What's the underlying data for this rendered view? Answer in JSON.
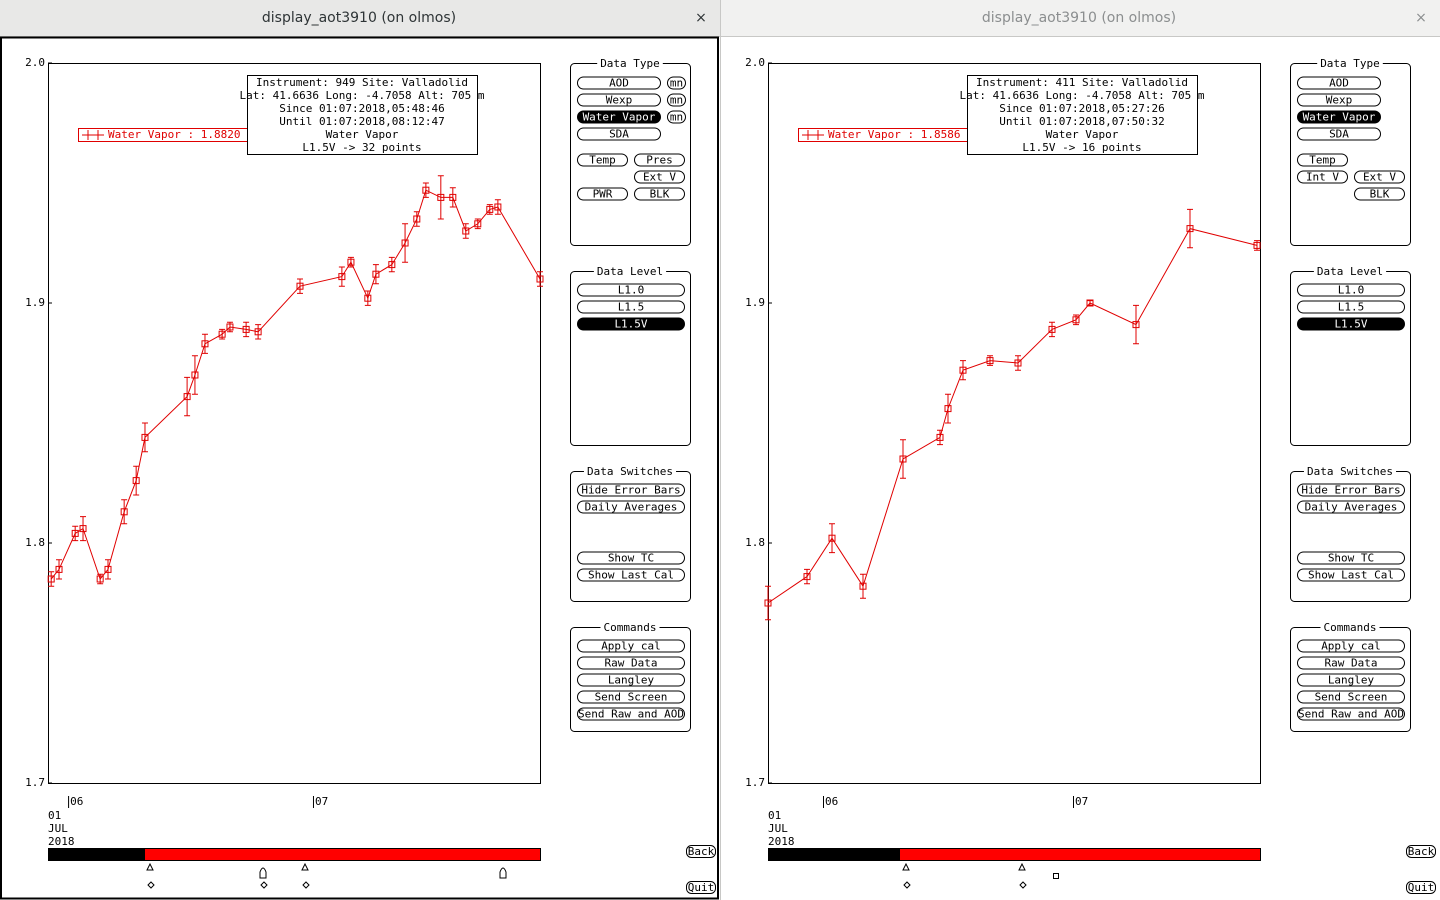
{
  "chart_data": [
    {
      "type": "line",
      "legend": "Water Vapor : 1.8820 ±",
      "info": [
        "Instrument: 949 Site: Valladolid",
        "Lat: 41.6636 Long: -4.7058 Alt: 705 m",
        "Since 01:07:2018,05:48:46",
        "Until 01:07:2018,08:12:47",
        "Water Vapor",
        "L1.5V -> 32 points"
      ],
      "date_labels": [
        "01",
        "JUL",
        "2018"
      ],
      "x": [
        5.931,
        5.963,
        6.029,
        6.061,
        6.131,
        6.163,
        6.229,
        6.278,
        6.314,
        6.486,
        6.518,
        6.559,
        6.629,
        6.661,
        6.727,
        6.776,
        6.947,
        7.118,
        7.155,
        7.224,
        7.257,
        7.322,
        7.376,
        7.424,
        7.461,
        7.522,
        7.571,
        7.624,
        7.673,
        7.722,
        7.755,
        7.927
      ],
      "values": [
        1.785,
        1.789,
        1.804,
        1.806,
        1.785,
        1.789,
        1.813,
        1.826,
        1.844,
        1.861,
        1.87,
        1.883,
        1.887,
        1.89,
        1.889,
        1.888,
        1.907,
        1.911,
        1.917,
        1.902,
        1.912,
        1.916,
        1.925,
        1.935,
        1.947,
        1.944,
        1.944,
        1.93,
        1.933,
        1.939,
        1.94,
        1.91
      ],
      "errors": [
        0.003,
        0.004,
        0.003,
        0.005,
        0.002,
        0.004,
        0.005,
        0.006,
        0.006,
        0.008,
        0.008,
        0.004,
        0.002,
        0.002,
        0.003,
        0.003,
        0.003,
        0.004,
        0.002,
        0.003,
        0.004,
        0.003,
        0.008,
        0.003,
        0.003,
        0.009,
        0.004,
        0.003,
        0.002,
        0.002,
        0.003,
        0.003
      ],
      "color": "#e00000",
      "xlim": [
        5.918,
        7.927
      ],
      "xticks": [
        {
          "value": 6,
          "label": "06"
        },
        {
          "value": 7,
          "label": "07"
        }
      ],
      "ylim": [
        1.7,
        2.0
      ],
      "yticks": [
        {
          "value": 2,
          "label": "2.0"
        },
        1.9,
        1.8,
        1.7
      ]
    },
    {
      "type": "line",
      "legend": "Water Vapor : 1.8586 ±",
      "info": [
        "Instrument: 411 Site: Valladolid",
        "Lat: 41.6636 Long: -4.7058 Alt: 705 m",
        "Since 01:07:2018,05:27:26",
        "Until 01:07:2018,07:50:32",
        "Water Vapor",
        "L1.5V -> 16 points"
      ],
      "date_labels": [
        "01",
        "JUL",
        "2018"
      ],
      "x": [
        5.78,
        5.936,
        6.036,
        6.16,
        6.32,
        6.468,
        6.5,
        6.56,
        6.668,
        6.78,
        6.916,
        7.012,
        7.068,
        7.252,
        7.468,
        7.736
      ],
      "values": [
        1.775,
        1.786,
        1.802,
        1.782,
        1.835,
        1.844,
        1.856,
        1.872,
        1.876,
        1.875,
        1.889,
        1.893,
        1.9,
        1.891,
        1.931,
        1.924
      ],
      "errors": [
        0.007,
        0.003,
        0.006,
        0.005,
        0.008,
        0.003,
        0.006,
        0.004,
        0.002,
        0.003,
        0.003,
        0.002,
        0.001,
        0.008,
        0.008,
        0.002
      ],
      "color": "#e00000",
      "xlim": [
        5.78,
        7.748
      ],
      "xticks": [
        {
          "value": 6,
          "label": "06"
        },
        {
          "value": 7,
          "label": "07"
        }
      ],
      "ylim": [
        1.7,
        2.0
      ],
      "yticks": [
        {
          "value": 2,
          "label": "2.0"
        },
        1.9,
        1.8,
        1.7
      ]
    }
  ],
  "windows": [
    {
      "title": "display_aot3910 (on olmos)",
      "close": "×",
      "active": true,
      "data_type": {
        "title": "Data Type",
        "buttons": [
          {
            "label": "AOD"
          },
          {
            "label": "mn"
          },
          {
            "label": "Wexp"
          },
          {
            "label": "mn"
          },
          {
            "label": "Water Vapor",
            "selected": true
          },
          {
            "label": "mn"
          },
          {
            "label": "SDA"
          },
          {
            "label": "Temp"
          },
          {
            "label": "Pres"
          },
          {
            "label": "Ext V"
          },
          {
            "label": "PWR"
          },
          {
            "label": "BLK"
          }
        ]
      },
      "data_level": {
        "title": "Data Level",
        "buttons": [
          {
            "label": "L1.0"
          },
          {
            "label": "L1.5"
          },
          {
            "label": "L1.5V",
            "selected": true
          }
        ]
      },
      "data_switches": {
        "title": "Data Switches",
        "buttons": [
          {
            "label": "Hide Error Bars"
          },
          {
            "label": "Daily Averages"
          },
          {
            "label": "Show TC"
          },
          {
            "label": "Show Last Cal"
          }
        ]
      },
      "commands": {
        "title": "Commands",
        "buttons": [
          {
            "label": "Apply cal"
          },
          {
            "label": "Raw Data"
          },
          {
            "label": "Langley"
          },
          {
            "label": "Send Screen"
          },
          {
            "label": "Send Raw and AOD"
          }
        ]
      },
      "back": "Back",
      "quit": "Quit"
    },
    {
      "title": "display_aot3910 (on olmos)",
      "close": "×",
      "active": false,
      "data_type": {
        "title": "Data Type",
        "buttons": [
          {
            "label": "AOD"
          },
          {
            "label": "Wexp"
          },
          {
            "label": "Water Vapor",
            "selected": true
          },
          {
            "label": "SDA"
          },
          {
            "label": "Temp"
          },
          {
            "label": "Int V"
          },
          {
            "label": "Ext V"
          },
          {
            "label": "BLK"
          }
        ]
      },
      "data_level": {
        "title": "Data Level",
        "buttons": [
          {
            "label": "L1.0"
          },
          {
            "label": "L1.5"
          },
          {
            "label": "L1.5V",
            "selected": true
          }
        ]
      },
      "data_switches": {
        "title": "Data Switches",
        "buttons": [
          {
            "label": "Hide Error Bars"
          },
          {
            "label": "Daily Averages"
          },
          {
            "label": "Show TC"
          },
          {
            "label": "Show Last Cal"
          }
        ]
      },
      "commands": {
        "title": "Commands",
        "buttons": [
          {
            "label": "Apply cal"
          },
          {
            "label": "Raw Data"
          },
          {
            "label": "Langley"
          },
          {
            "label": "Send Screen"
          },
          {
            "label": "Send Raw and AOD"
          }
        ]
      },
      "back": "Back",
      "quit": "Quit"
    }
  ]
}
